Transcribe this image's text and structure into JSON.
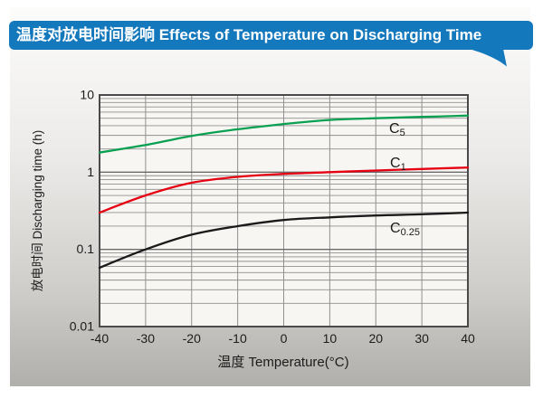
{
  "banner": {
    "title": "温度对放电时间影响 Effects of Temperature on Discharging Time",
    "color": "#1478bd",
    "text_color": "#ffffff"
  },
  "chart_data": {
    "type": "line",
    "title": "温度对放电时间影响 Effects of Temperature on Discharging Time",
    "xlabel": "温度  Temperature(°C)",
    "ylabel": "放电时间 Discharging time (h)",
    "x": [
      -40,
      -30,
      -20,
      -10,
      0,
      10,
      20,
      30,
      40
    ],
    "x_tick_labels": [
      "-40",
      "-30",
      "-20",
      "-10",
      "0",
      "10",
      "20",
      "30",
      "40"
    ],
    "xlim": [
      -40,
      40
    ],
    "yscale": "log",
    "ylim": [
      0.01,
      10
    ],
    "y_tick_values": [
      10,
      1,
      0.1,
      0.01
    ],
    "y_tick_labels": [
      "10",
      "1",
      "0.1",
      "0.01"
    ],
    "grid": "vertical every 10°C, horizontal log minor lines (2-9 per decade)",
    "legend_position": "inline labels beside curves",
    "series": [
      {
        "name": "C5",
        "label_main": "C",
        "label_sub": "5",
        "color": "#0aa052",
        "values": [
          1.8,
          2.25,
          2.95,
          3.6,
          4.2,
          4.75,
          5.0,
          5.2,
          5.4
        ]
      },
      {
        "name": "C1",
        "label_main": "C",
        "label_sub": "1",
        "color": "#e60012",
        "values": [
          0.3,
          0.5,
          0.73,
          0.87,
          0.95,
          1.0,
          1.05,
          1.1,
          1.15
        ]
      },
      {
        "name": "C0.25",
        "label_main": "C",
        "label_sub": "0.25",
        "color": "#1a1a1a",
        "values": [
          0.058,
          0.1,
          0.155,
          0.2,
          0.24,
          0.26,
          0.275,
          0.285,
          0.3
        ]
      }
    ],
    "colors": {
      "plot_background": "#f7f6f3",
      "grid_minor": "#8f8f8f",
      "grid_major": "#6b6b6b",
      "plot_border": "#4a4a4a",
      "tick_text": "#1c1c1c"
    }
  }
}
